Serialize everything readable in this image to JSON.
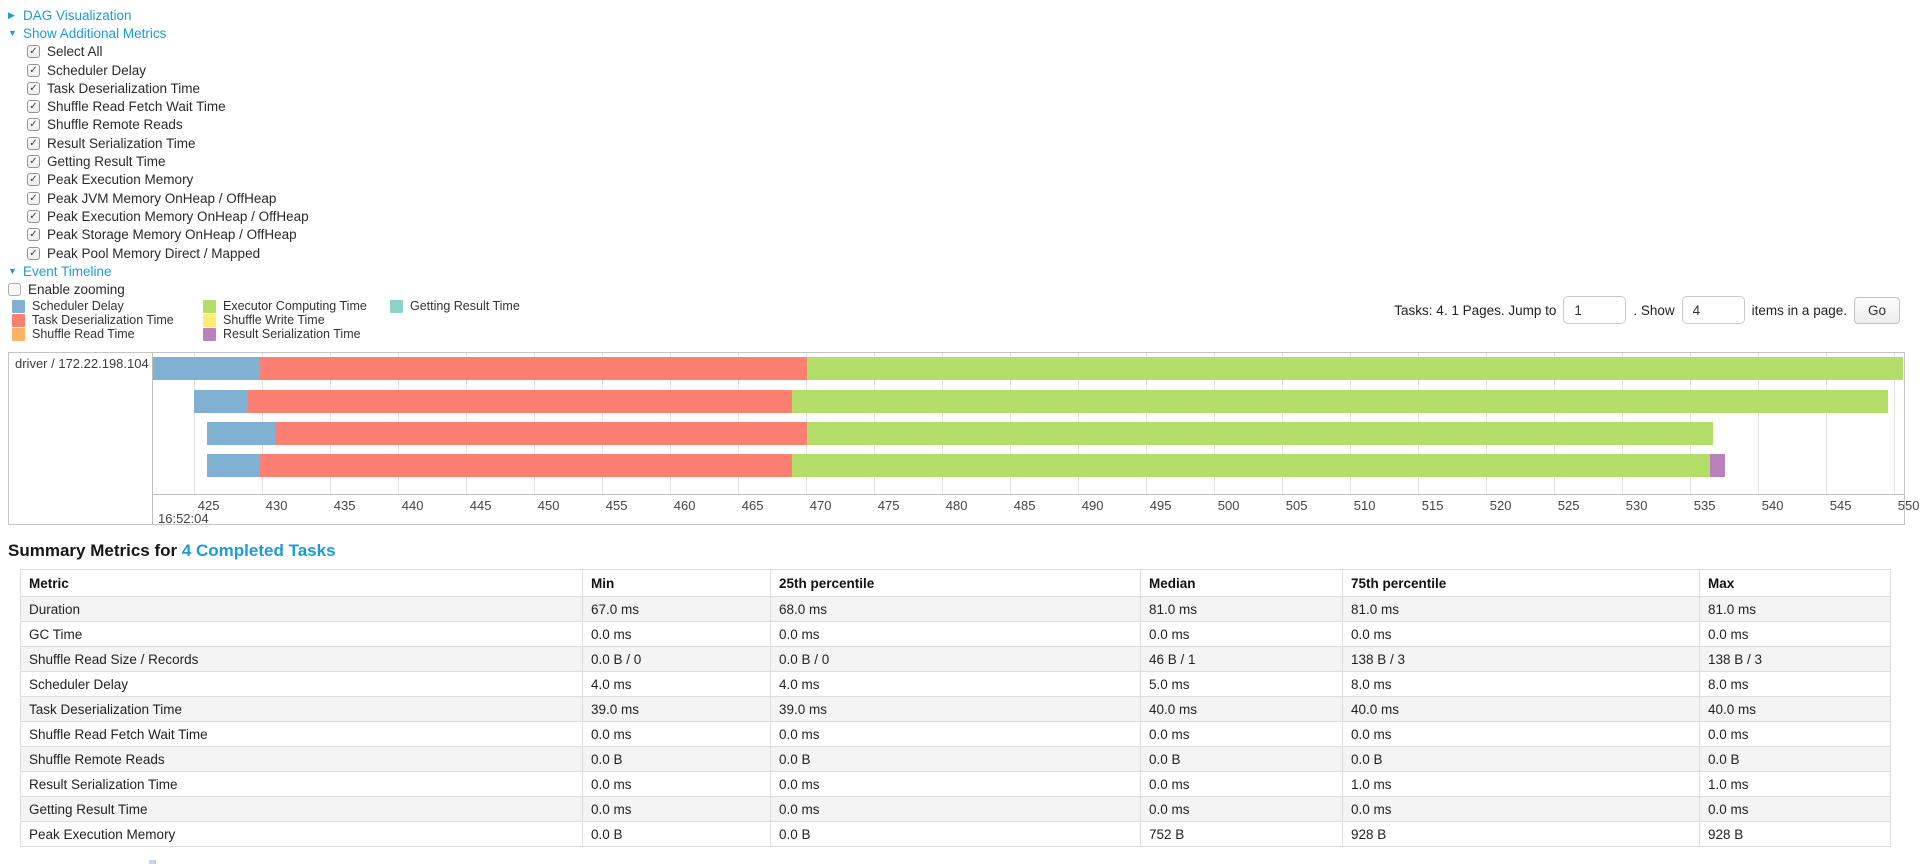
{
  "toggles": {
    "dag": {
      "label": "DAG Visualization",
      "state": "collapsed"
    },
    "additional_metrics": {
      "label": "Show Additional Metrics",
      "state": "expanded"
    },
    "event_timeline": {
      "label": "Event Timeline",
      "state": "expanded"
    }
  },
  "metrics_checkboxes": [
    {
      "label": "Select All",
      "checked": true
    },
    {
      "label": "Scheduler Delay",
      "checked": true
    },
    {
      "label": "Task Deserialization Time",
      "checked": true
    },
    {
      "label": "Shuffle Read Fetch Wait Time",
      "checked": true
    },
    {
      "label": "Shuffle Remote Reads",
      "checked": true
    },
    {
      "label": "Result Serialization Time",
      "checked": true
    },
    {
      "label": "Getting Result Time",
      "checked": true
    },
    {
      "label": "Peak Execution Memory",
      "checked": true
    },
    {
      "label": "Peak JVM Memory OnHeap / OffHeap",
      "checked": true
    },
    {
      "label": "Peak Execution Memory OnHeap / OffHeap",
      "checked": true
    },
    {
      "label": "Peak Storage Memory OnHeap / OffHeap",
      "checked": true
    },
    {
      "label": "Peak Pool Memory Direct / Mapped",
      "checked": true
    }
  ],
  "enable_zooming": {
    "label": "Enable zooming",
    "checked": false
  },
  "legend": {
    "colors": {
      "scheduler_delay": "#80B1D3",
      "task_deserialization": "#FB8072",
      "shuffle_read": "#FDB462",
      "executor_computing": "#B3DE69",
      "shuffle_write": "#FFED6F",
      "result_serialization": "#BC80BD",
      "getting_result": "#8DD3C7"
    },
    "columns": [
      [
        {
          "key": "scheduler_delay",
          "label": "Scheduler Delay"
        },
        {
          "key": "task_deserialization",
          "label": "Task Deserialization Time"
        },
        {
          "key": "shuffle_read",
          "label": "Shuffle Read Time"
        }
      ],
      [
        {
          "key": "executor_computing",
          "label": "Executor Computing Time"
        },
        {
          "key": "shuffle_write",
          "label": "Shuffle Write Time"
        },
        {
          "key": "result_serialization",
          "label": "Result Serialization Time"
        }
      ],
      [
        {
          "key": "getting_result",
          "label": "Getting Result Time"
        }
      ]
    ]
  },
  "pagination": {
    "tasks_text": "Tasks: 4. 1 Pages. Jump to",
    "jump_value": "1",
    "mid_text": ". Show",
    "show_value": "4",
    "suffix_text": "items in a page.",
    "go_label": "Go"
  },
  "chart_data": {
    "type": "timeline",
    "group_label": "driver / 172.22.198.104",
    "axis": {
      "major_label": "16:52:04",
      "unit": "ms within 16:52:04",
      "domain": [
        422,
        551
      ],
      "ticks": [
        425,
        430,
        435,
        440,
        445,
        450,
        455,
        460,
        465,
        470,
        475,
        480,
        485,
        490,
        495,
        500,
        505,
        510,
        515,
        520,
        525,
        530,
        535,
        540,
        545,
        550
      ]
    },
    "tasks": [
      {
        "segments": [
          {
            "key": "scheduler_delay",
            "start": 422.0,
            "end": 429.9
          },
          {
            "key": "task_deserialization",
            "start": 429.9,
            "end": 470.1
          },
          {
            "key": "executor_computing",
            "start": 470.1,
            "end": 550.7
          }
        ]
      },
      {
        "segments": [
          {
            "key": "scheduler_delay",
            "start": 425.0,
            "end": 429.0
          },
          {
            "key": "task_deserialization",
            "start": 429.0,
            "end": 469.0
          },
          {
            "key": "executor_computing",
            "start": 469.0,
            "end": 549.6
          }
        ]
      },
      {
        "segments": [
          {
            "key": "scheduler_delay",
            "start": 426.0,
            "end": 431.0
          },
          {
            "key": "task_deserialization",
            "start": 431.0,
            "end": 470.1
          },
          {
            "key": "executor_computing",
            "start": 470.1,
            "end": 536.7
          }
        ]
      },
      {
        "segments": [
          {
            "key": "scheduler_delay",
            "start": 426.0,
            "end": 429.9
          },
          {
            "key": "task_deserialization",
            "start": 429.9,
            "end": 469.0
          },
          {
            "key": "executor_computing",
            "start": 469.0,
            "end": 536.5
          },
          {
            "key": "result_serialization",
            "start": 536.5,
            "end": 537.6
          }
        ]
      }
    ]
  },
  "summary": {
    "title_prefix": "Summary Metrics for ",
    "title_link": "4 Completed Tasks",
    "table": {
      "headers": [
        "Metric",
        "Min",
        "25th percentile",
        "Median",
        "75th percentile",
        "Max"
      ],
      "rows": [
        {
          "metric": "Duration",
          "values": [
            "67.0 ms",
            "68.0 ms",
            "81.0 ms",
            "81.0 ms",
            "81.0 ms"
          ]
        },
        {
          "metric": "GC Time",
          "values": [
            "0.0 ms",
            "0.0 ms",
            "0.0 ms",
            "0.0 ms",
            "0.0 ms"
          ]
        },
        {
          "metric": "Shuffle Read Size / Records",
          "values": [
            "0.0 B / 0",
            "0.0 B / 0",
            "46 B / 1",
            "138 B / 3",
            "138 B / 3"
          ]
        },
        {
          "metric": "Scheduler Delay",
          "values": [
            "4.0 ms",
            "4.0 ms",
            "5.0 ms",
            "8.0 ms",
            "8.0 ms"
          ]
        },
        {
          "metric": "Task Deserialization Time",
          "values": [
            "39.0 ms",
            "39.0 ms",
            "40.0 ms",
            "40.0 ms",
            "40.0 ms"
          ]
        },
        {
          "metric": "Shuffle Read Fetch Wait Time",
          "values": [
            "0.0 ms",
            "0.0 ms",
            "0.0 ms",
            "0.0 ms",
            "0.0 ms"
          ]
        },
        {
          "metric": "Shuffle Remote Reads",
          "values": [
            "0.0 B",
            "0.0 B",
            "0.0 B",
            "0.0 B",
            "0.0 B"
          ]
        },
        {
          "metric": "Result Serialization Time",
          "values": [
            "0.0 ms",
            "0.0 ms",
            "0.0 ms",
            "1.0 ms",
            "1.0 ms"
          ]
        },
        {
          "metric": "Getting Result Time",
          "values": [
            "0.0 ms",
            "0.0 ms",
            "0.0 ms",
            "0.0 ms",
            "0.0 ms"
          ]
        },
        {
          "metric": "Peak Execution Memory",
          "values": [
            "0.0 B",
            "0.0 B",
            "752 B",
            "928 B",
            "928 B"
          ]
        }
      ]
    }
  }
}
